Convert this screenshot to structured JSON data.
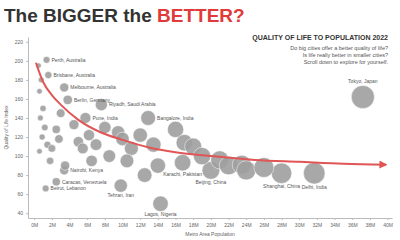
{
  "chart_data": {
    "type": "scatter",
    "title": "The BIGGER the BETTER?",
    "subtitle": "QUALITY OF LIFE TO POPULATION 2022",
    "annotations": [
      "Do big cities offer a better quality of life?",
      "Is life really better in smaller cities?",
      "Scroll down to explore for yourself."
    ],
    "x_label": "Metro Area Population",
    "y_label": "Quality of Life Index",
    "color": "#9e9e9e",
    "marker": "circle",
    "grid": false,
    "xlim": [
      -0.7,
      40.5
    ],
    "xticks": [
      {
        "value": 0,
        "label": "0M"
      },
      {
        "value": 2,
        "label": "2M"
      },
      {
        "value": 4,
        "label": "4M"
      },
      {
        "value": 6,
        "label": "6M"
      },
      {
        "value": 8,
        "label": "8M"
      },
      {
        "value": 10,
        "label": "10M"
      },
      {
        "value": 12,
        "label": "12M"
      },
      {
        "value": 14,
        "label": "14M"
      },
      {
        "value": 16,
        "label": "16M"
      },
      {
        "value": 18,
        "label": "18M"
      },
      {
        "value": 20,
        "label": "20M"
      },
      {
        "value": 22,
        "label": "22M"
      },
      {
        "value": 24,
        "label": "24M"
      },
      {
        "value": 26,
        "label": "26M"
      },
      {
        "value": 28,
        "label": "28M"
      },
      {
        "value": 30,
        "label": "30M"
      },
      {
        "value": 32,
        "label": "32M"
      },
      {
        "value": 34,
        "label": "34M"
      },
      {
        "value": 36,
        "label": "36M"
      },
      {
        "value": 38,
        "label": "38M"
      },
      {
        "value": 40,
        "label": "40M"
      }
    ],
    "ylim": [
      35,
      225
    ],
    "yticks": [
      40,
      60,
      80,
      100,
      120,
      140,
      160,
      180,
      200,
      220
    ],
    "x": [
      1.4,
      1.6,
      3.4,
      3.8,
      7.6,
      5.8,
      12.9,
      37.2,
      3.4,
      2.5,
      1.3,
      9.8,
      16.8,
      20.0,
      14.3,
      28.0,
      31.7,
      0.5,
      0.8,
      0.6,
      1.0,
      0.7,
      1.2,
      0.9,
      1.5,
      0.6,
      2.0,
      1.8,
      2.5,
      3.0,
      2.8,
      4.5,
      5.0,
      5.5,
      6.2,
      7.0,
      8.0,
      9.5,
      10.0,
      11.0,
      12.0,
      13.5,
      16.0,
      17.0,
      18.0,
      19.0,
      21.0,
      22.0,
      23.5,
      24.0,
      26.0,
      14.0,
      10.5,
      8.5,
      6.5,
      3.5,
      12.5
    ],
    "values": [
      201,
      185,
      172,
      159,
      154,
      140,
      140,
      162,
      85,
      73,
      66,
      69,
      93,
      85,
      50,
      82,
      82,
      195,
      180,
      168,
      150,
      140,
      130,
      120,
      112,
      105,
      108,
      95,
      128,
      145,
      118,
      133,
      115,
      108,
      122,
      112,
      130,
      125,
      118,
      108,
      122,
      112,
      128,
      114,
      110,
      100,
      96,
      90,
      91,
      85,
      88,
      90,
      95,
      100,
      95,
      90,
      80
    ],
    "labels": [
      "Perth, Australia",
      "Brisbane, Australia",
      "Melbourne, Australia",
      "Berlin, Germany",
      "Riyadh, Saudi Arabia",
      "Pune, India",
      "Bangalore, India",
      "Tokyo, Japan",
      "Nairobi, Kenya",
      "Caracas, Venezuela",
      "Beirut, Lebanon",
      "Tehran, Iran",
      "Karachi, Pakistan",
      "Beijing, China",
      "Lagos, Nigeria",
      "Shanghai, China",
      "Delhi, India",
      null,
      null,
      null,
      null,
      null,
      null,
      null,
      null,
      null,
      null,
      null,
      null,
      null,
      null,
      null,
      null,
      null,
      null,
      null,
      null,
      null,
      null,
      null,
      null,
      null,
      null,
      null,
      null,
      null,
      null,
      null,
      null,
      null,
      null,
      null,
      null,
      null,
      null,
      null,
      null
    ],
    "trend": {
      "type": "line",
      "color": "#e05555",
      "x": [
        0.2,
        1,
        2,
        3,
        5,
        7.5,
        10,
        13,
        16,
        20,
        25,
        30,
        35,
        39.8
      ],
      "values": [
        198,
        178,
        164,
        154,
        138,
        125,
        117,
        109,
        104,
        100,
        96,
        94,
        92,
        91
      ]
    }
  }
}
